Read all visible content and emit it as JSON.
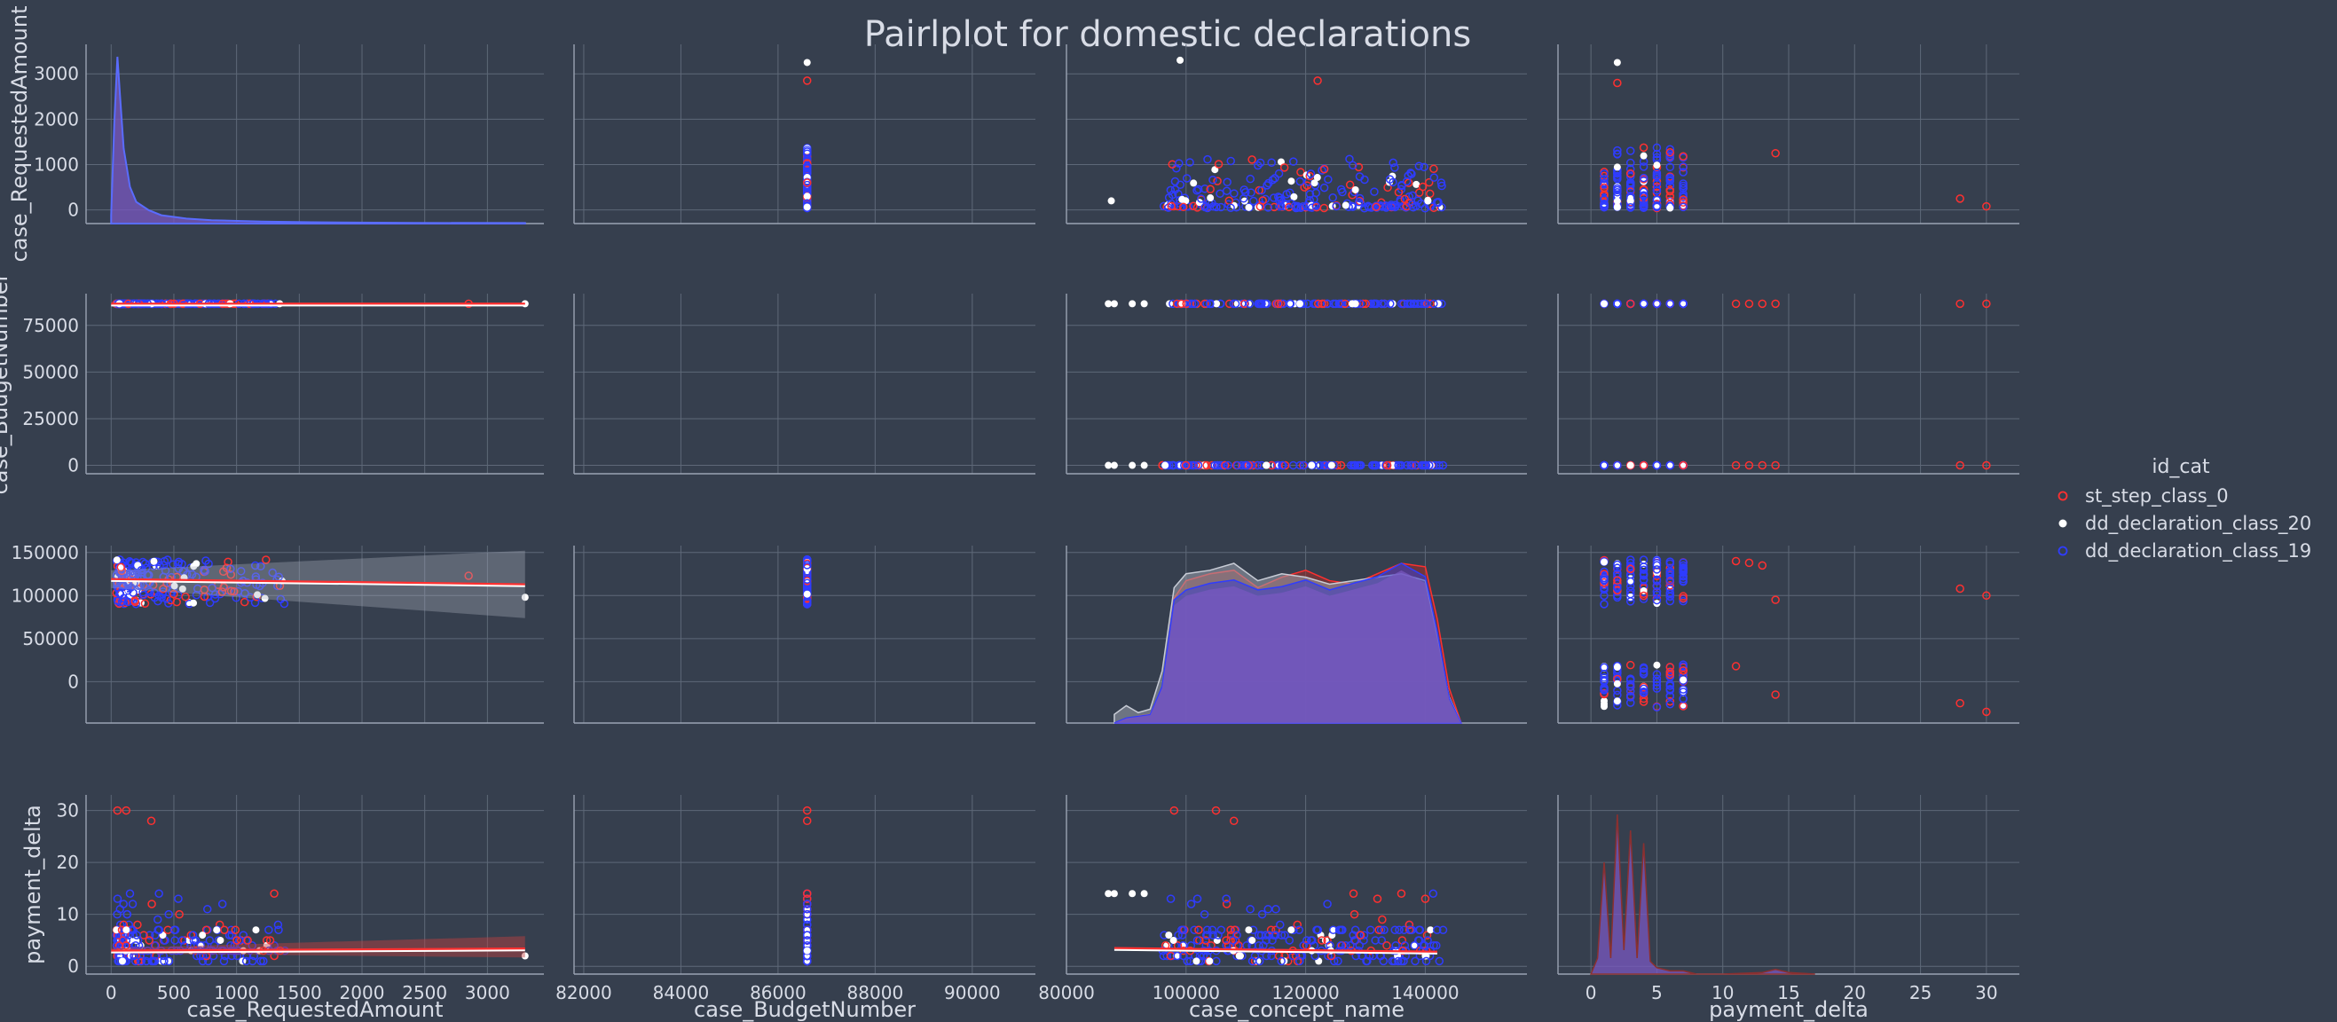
{
  "figure": {
    "title": "Pairlplot for domestic declarations",
    "background": "#363f4e",
    "text_color": "#d8dce6",
    "grid_color": "#5e6878",
    "axis_color": "#9aa3b3"
  },
  "legend": {
    "title": "id_cat",
    "placement": "right",
    "entries": [
      {
        "label": "st_step_class_0",
        "color": "#ff3030",
        "marker": "ring"
      },
      {
        "label": "dd_declaration_class_20",
        "color": "#ffffff",
        "marker": "dot"
      },
      {
        "label": "dd_declaration_class_19",
        "color": "#2f3cff",
        "marker": "ring"
      }
    ]
  },
  "chart_data": {
    "type": "scatter",
    "subtype": "pairplot",
    "grid": true,
    "variables": [
      "case_RequestedAmount",
      "case_BudgetNumber",
      "case_concept_name",
      "payment_delta"
    ],
    "row_axis_labels": [
      "case_RequestedAmount",
      "case_BudgetNumber",
      "",
      "payment_delta"
    ],
    "hue": "id_cat",
    "hue_levels": [
      "st_step_class_0",
      "dd_declaration_class_20",
      "dd_declaration_class_19"
    ],
    "columns": [
      {
        "label": "case_RequestedAmount",
        "xlim": [
          -200,
          3450
        ],
        "ticks": [
          0,
          500,
          1000,
          1500,
          2000,
          2500,
          3000
        ]
      },
      {
        "label": "case_BudgetNumber",
        "xlim": [
          81800,
          91300
        ],
        "ticks": [
          82000,
          84000,
          86000,
          88000,
          90000
        ]
      },
      {
        "label": "case_concept_name",
        "xlim": [
          80000,
          157000
        ],
        "ticks": [
          80000,
          100000,
          120000,
          140000
        ]
      },
      {
        "label": "payment_delta",
        "xlim": [
          -2.5,
          32.5
        ],
        "ticks": [
          0,
          5,
          10,
          15,
          20,
          25,
          30
        ]
      }
    ],
    "rows": [
      {
        "label": "case_RequestedAmount",
        "ylim": [
          -300,
          3650
        ],
        "ticks": [
          0,
          1000,
          2000,
          3000
        ]
      },
      {
        "label": "case_BudgetNumber",
        "ylim": [
          -4500,
          92000
        ],
        "ticks": [
          0,
          25000,
          50000,
          75000
        ]
      },
      {
        "label": "",
        "ylim": [
          -48000,
          158000
        ],
        "ticks": [
          0,
          50000,
          100000,
          150000
        ]
      },
      {
        "label": "payment_delta",
        "ylim": [
          -1.5,
          33
        ],
        "ticks": [
          0,
          10,
          20,
          30
        ]
      }
    ],
    "diagonal": [
      {
        "panel": "r0c0",
        "type": "kde",
        "x": [
          0,
          25,
          50,
          75,
          100,
          150,
          200,
          300,
          400,
          600,
          800,
          1200,
          1600,
          2400,
          3300
        ],
        "density": [
          0.05,
          0.6,
          1.0,
          0.72,
          0.45,
          0.22,
          0.13,
          0.08,
          0.05,
          0.03,
          0.02,
          0.012,
          0.008,
          0.004,
          0.003
        ]
      },
      {
        "panel": "r2c2",
        "type": "kde",
        "x": [
          88000,
          90000,
          92000,
          94000,
          96000,
          98000,
          100000,
          104000,
          108000,
          112000,
          116000,
          120000,
          124000,
          128000,
          132000,
          136000,
          140000,
          142000,
          144000,
          146000
        ],
        "series": [
          {
            "name": "st_step_class_0",
            "density": [
              0.0,
              0.02,
              0.04,
              0.05,
              0.2,
              0.72,
              0.82,
              0.86,
              0.88,
              0.78,
              0.84,
              0.88,
              0.82,
              0.8,
              0.86,
              0.92,
              0.9,
              0.6,
              0.2,
              0.0
            ]
          },
          {
            "name": "dd_declaration_class_20",
            "density": [
              0.05,
              0.1,
              0.06,
              0.08,
              0.3,
              0.78,
              0.86,
              0.88,
              0.92,
              0.82,
              0.86,
              0.84,
              0.8,
              0.82,
              0.84,
              0.86,
              0.82,
              0.5,
              0.15,
              0.0
            ]
          },
          {
            "name": "dd_declaration_class_19",
            "density": [
              0.0,
              0.03,
              0.04,
              0.05,
              0.22,
              0.74,
              0.8,
              0.84,
              0.86,
              0.8,
              0.82,
              0.86,
              0.8,
              0.84,
              0.88,
              0.96,
              0.88,
              0.55,
              0.15,
              0.0
            ]
          }
        ]
      },
      {
        "panel": "r3c3",
        "type": "kde",
        "x": [
          0,
          0.5,
          1,
          1.5,
          2,
          2.5,
          3,
          3.5,
          4,
          4.5,
          5,
          6,
          7,
          8,
          10,
          13,
          14,
          15,
          17
        ],
        "density": [
          0.0,
          0.1,
          0.7,
          0.1,
          1.0,
          0.15,
          0.9,
          0.1,
          0.82,
          0.08,
          0.04,
          0.02,
          0.02,
          0.0,
          0.0,
          0.01,
          0.03,
          0.01,
          0.0
        ]
      }
    ],
    "regression_lines": [
      {
        "panel": "r1c0",
        "x": [
          0,
          3300
        ],
        "y": [
          86600,
          86600
        ]
      },
      {
        "panel": "r2c0",
        "x": [
          0,
          3300
        ],
        "y": [
          119000,
          113000
        ]
      },
      {
        "panel": "r3c0",
        "x": [
          0,
          3300
        ],
        "y": [
          3.0,
          3.4
        ]
      },
      {
        "panel": "r3c2",
        "x": [
          88000,
          142000
        ],
        "y": [
          3.5,
          2.8
        ]
      }
    ]
  }
}
